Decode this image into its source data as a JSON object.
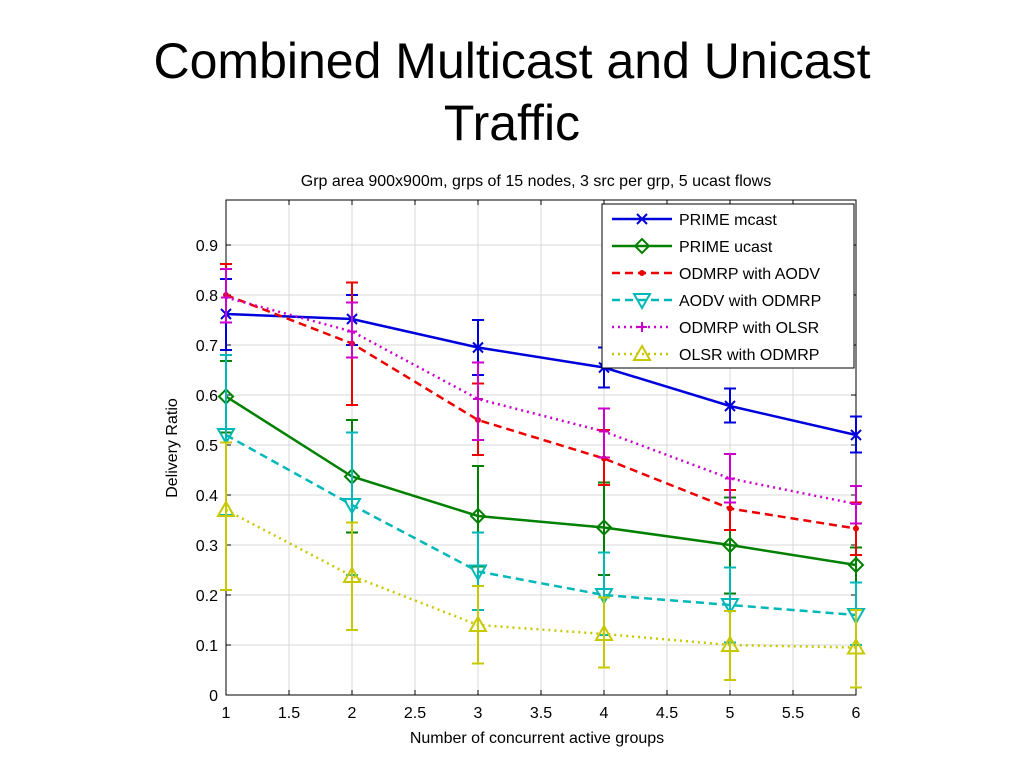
{
  "slide": {
    "title_line1": "Combined Multicast and Unicast",
    "title_line2": "Traffic"
  },
  "chart_data": {
    "type": "line",
    "title": "Grp area 900x900m, grps of 15 nodes, 3 src per grp, 5 ucast flows",
    "xlabel": "Number of concurrent active groups",
    "ylabel": "Delivery Ratio",
    "xlim": [
      1,
      6
    ],
    "ylim": [
      0,
      0.99
    ],
    "xticks": [
      1,
      1.5,
      2,
      2.5,
      3,
      3.5,
      4,
      4.5,
      5,
      5.5,
      6
    ],
    "xtick_labels": [
      "1",
      "1.5",
      "2",
      "2.5",
      "3",
      "3.5",
      "4",
      "4.5",
      "5",
      "5.5",
      "6"
    ],
    "yticks": [
      0,
      0.1,
      0.2,
      0.3,
      0.4,
      0.5,
      0.6,
      0.7,
      0.8,
      0.9
    ],
    "ytick_labels": [
      "0",
      "0.1",
      "0.2",
      "0.3",
      "0.4",
      "0.5",
      "0.6",
      "0.7",
      "0.8",
      "0.9"
    ],
    "grid": true,
    "legend_position": "top-right",
    "x": [
      1,
      2,
      3,
      4,
      5,
      6
    ],
    "series": [
      {
        "name": "PRIME mcast",
        "color": "#0000dd",
        "dash": "solid",
        "marker": "x",
        "values": [
          0.762,
          0.752,
          0.695,
          0.655,
          0.578,
          0.52
        ],
        "err_low": [
          0.69,
          0.7,
          0.64,
          0.615,
          0.545,
          0.485
        ],
        "err_high": [
          0.832,
          0.8,
          0.75,
          0.695,
          0.613,
          0.557
        ]
      },
      {
        "name": "PRIME ucast",
        "color": "#008000",
        "dash": "solid",
        "marker": "diamond",
        "values": [
          0.597,
          0.437,
          0.358,
          0.335,
          0.3,
          0.26
        ],
        "err_low": [
          0.525,
          0.325,
          0.257,
          0.24,
          0.203,
          0.225
        ],
        "err_high": [
          0.668,
          0.55,
          0.458,
          0.425,
          0.395,
          0.295
        ]
      },
      {
        "name": "ODMRP with AODV",
        "color": "#ee0000",
        "dash": "dashed",
        "marker": "dot",
        "values": [
          0.8,
          0.703,
          0.55,
          0.473,
          0.373,
          0.333
        ],
        "err_low": [
          0.745,
          0.58,
          0.48,
          0.42,
          0.33,
          0.28
        ],
        "err_high": [
          0.862,
          0.825,
          0.623,
          0.53,
          0.41,
          0.385
        ]
      },
      {
        "name": "AODV with ODMRP",
        "color": "#00b8b8",
        "dash": "dashed",
        "marker": "triangle-down",
        "values": [
          0.52,
          0.38,
          0.247,
          0.2,
          0.18,
          0.16
        ],
        "err_low": [
          0.36,
          0.24,
          0.17,
          0.12,
          0.105,
          0.1
        ],
        "err_high": [
          0.68,
          0.525,
          0.325,
          0.285,
          0.255,
          0.225
        ]
      },
      {
        "name": "ODMRP with OLSR",
        "color": "#cc00cc",
        "dash": "dotted",
        "marker": "plus",
        "values": [
          0.795,
          0.727,
          0.592,
          0.527,
          0.433,
          0.382
        ],
        "err_low": [
          0.745,
          0.675,
          0.51,
          0.475,
          0.385,
          0.343
        ],
        "err_high": [
          0.852,
          0.785,
          0.665,
          0.573,
          0.482,
          0.418
        ]
      },
      {
        "name": "OLSR with ODMRP",
        "color": "#c8c800",
        "dash": "dotted",
        "marker": "triangle-up",
        "values": [
          0.37,
          0.238,
          0.14,
          0.122,
          0.1,
          0.095
        ],
        "err_low": [
          0.21,
          0.13,
          0.063,
          0.055,
          0.03,
          0.015
        ],
        "err_high": [
          0.505,
          0.345,
          0.218,
          0.195,
          0.168,
          0.17
        ]
      }
    ]
  }
}
